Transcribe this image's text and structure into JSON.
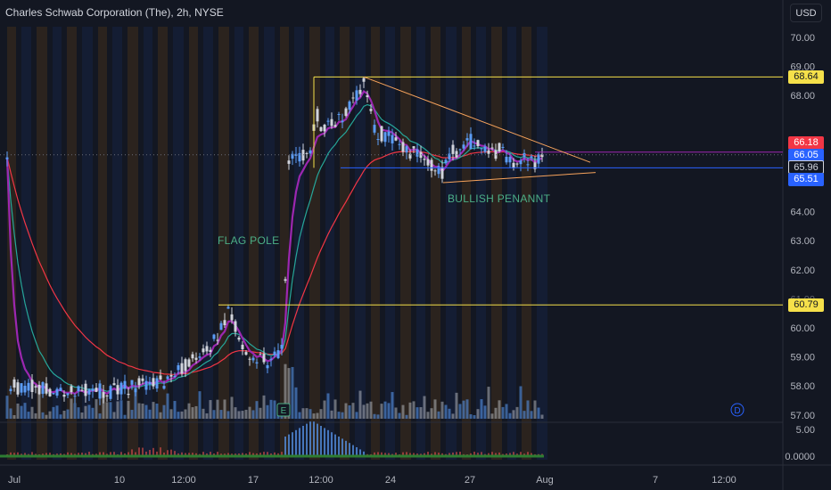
{
  "chart": {
    "title": "Charles Schwab Corporation (The), 2h, NYSE",
    "currency": "USD",
    "colors": {
      "background": "#131722",
      "axis_text": "#b2b5be",
      "bull": "#5b9cf6",
      "bear": "#d1d4dc",
      "ema_fast": "#26a69a",
      "ema_mid": "#9c27b0",
      "ema_slow": "#f23645",
      "level_line": "#f5e04a",
      "pennant_line": "#f7a35c",
      "support_line": "#2962ff",
      "annotation_text": "#4caf87"
    },
    "price_axis_ticks": [
      "70.00",
      "69.00",
      "68.00",
      "65.00",
      "64.00",
      "63.00",
      "62.00",
      "60.00",
      "59.00",
      "58.00",
      "57.00"
    ],
    "price_axis_partial": [
      "61.00"
    ],
    "oscillator_ticks": [
      "5.00",
      "0.0000"
    ],
    "time_axis_ticks": [
      "Jul",
      "10",
      "12:00",
      "17",
      "12:00",
      "24",
      "27",
      "Aug",
      "7",
      "12:00"
    ],
    "price_labels": [
      {
        "id": "resistance",
        "value": "68.64",
        "price": 68.64,
        "bg": "#f5e04a",
        "fg": "#131722"
      },
      {
        "id": "ema-red",
        "value": "66.18",
        "price": 66.35,
        "bg": "#f23645",
        "fg": "#ffffff"
      },
      {
        "id": "ema-purple",
        "value": "66.05",
        "price": 65.95,
        "bg": "#2962ff",
        "fg": "#ffffff"
      },
      {
        "id": "last-price",
        "value": "65.96",
        "price": 65.55,
        "bg": "#131722",
        "fg": "#d1d4dc",
        "border": "#d1d4dc"
      },
      {
        "id": "support",
        "value": "65.51",
        "price": 65.1,
        "bg": "#2962ff",
        "fg": "#ffffff"
      },
      {
        "id": "flag-base",
        "value": "60.79",
        "price": 60.79,
        "bg": "#f5e04a",
        "fg": "#131722"
      }
    ],
    "annotations": [
      {
        "id": "flag-pole",
        "text": "FLAG POLE"
      },
      {
        "id": "bullish-pennant",
        "text": "BULLISH PENANNT"
      }
    ],
    "event_markers": [
      {
        "id": "earnings",
        "letter": "E"
      },
      {
        "id": "dividend",
        "letter": "D"
      }
    ]
  }
}
